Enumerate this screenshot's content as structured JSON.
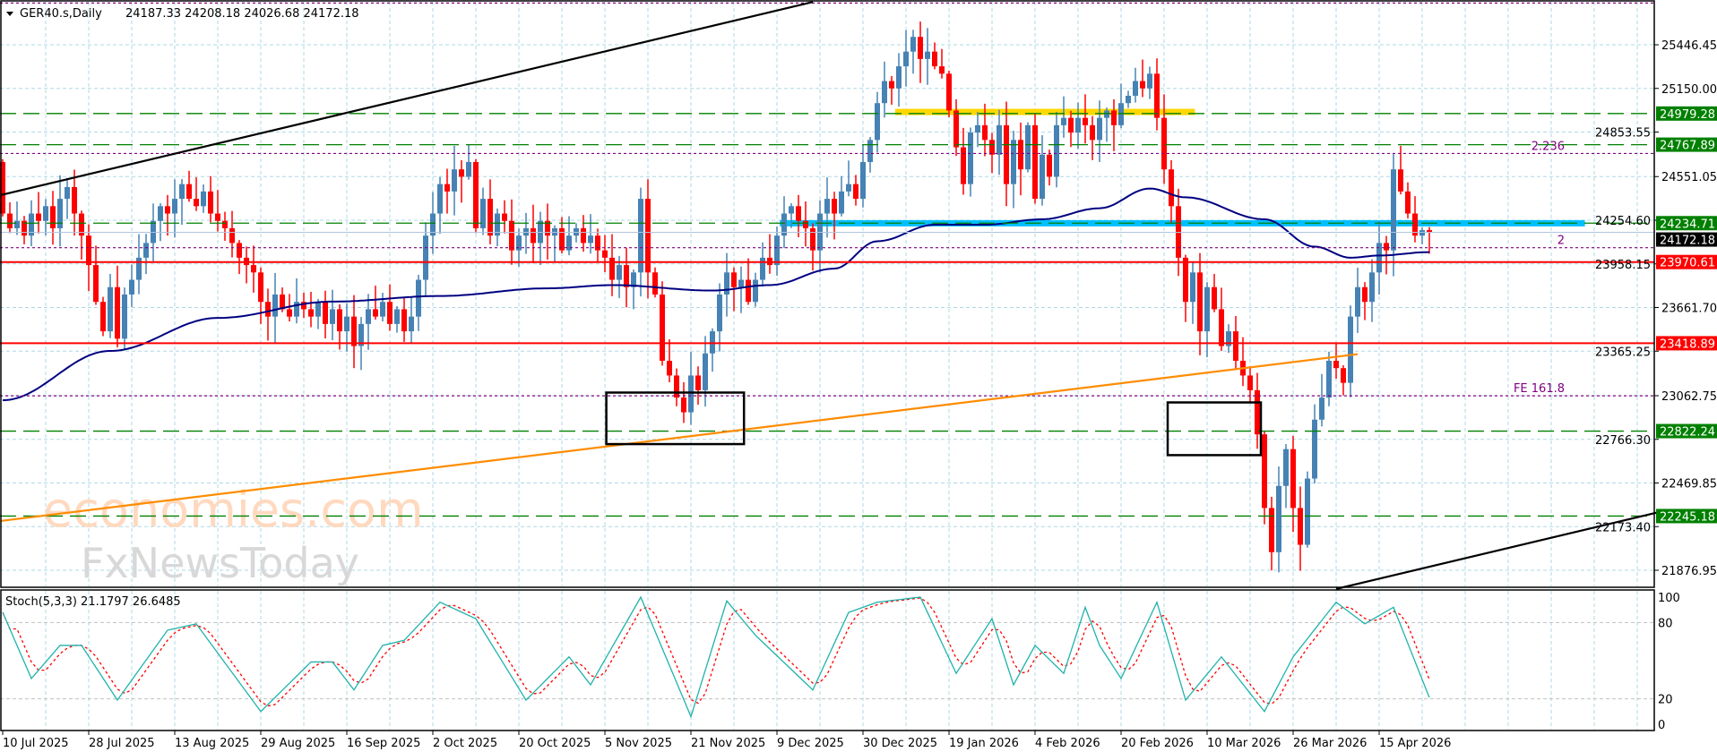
{
  "header": {
    "symbol": "GER40.s,Daily",
    "ohlc": "24187.33 24208.18 24026.68 24172.18",
    "menu_icon": "triangle-down-icon"
  },
  "watermark": {
    "line1": "economies.com",
    "line2": "FxNewsToday"
  },
  "colors": {
    "bull": "#4682b4",
    "bear": "#ff0000",
    "grid": "#add8e6",
    "ma": "#000080",
    "support_resistance_green": "#008000",
    "support_resistance_red": "#ff0000",
    "fib": "#800080",
    "yellow_zone": "#ffd700",
    "cyan_zone": "#00bfff",
    "orange_trend": "#ff8c00",
    "stoch_main": "#20b2aa",
    "stoch_signal": "#ff0000",
    "current_price": "#000000"
  },
  "chart_data": {
    "type": "candlestick",
    "instrument": "GER40.s",
    "timeframe": "Daily",
    "last_bar": {
      "open": 24187.33,
      "high": 24208.18,
      "low": 24026.68,
      "close": 24172.18
    },
    "closes": [
      24300,
      24200,
      24250,
      24150,
      24300,
      24250,
      24350,
      24200,
      24400,
      24480,
      24300,
      24150,
      23950,
      23700,
      23500,
      23800,
      23450,
      23750,
      23850,
      24000,
      24100,
      24250,
      24350,
      24300,
      24400,
      24500,
      24400,
      24350,
      24450,
      24300,
      24250,
      24200,
      24100,
      24000,
      23950,
      23900,
      23700,
      23600,
      23750,
      23650,
      23600,
      23700,
      23650,
      23600,
      23700,
      23550,
      23650,
      23500,
      23600,
      23400,
      23550,
      23650,
      23600,
      23700,
      23550,
      23650,
      23500,
      23600,
      23850,
      24150,
      24300,
      24500,
      24450,
      24600,
      24550,
      24650,
      24200,
      24400,
      24150,
      24300,
      24250,
      24050,
      24150,
      24200,
      24100,
      24250,
      24150,
      24200,
      24050,
      24150,
      24200,
      24100,
      24150,
      24050,
      24000,
      23850,
      23950,
      23800,
      23900,
      24400,
      23900,
      23750,
      23300,
      23200,
      23050,
      22950,
      23200,
      23100,
      23350,
      23500,
      23750,
      23900,
      23800,
      23850,
      23700,
      23850,
      24000,
      23950,
      24150,
      24300,
      24350,
      24250,
      24200,
      24050,
      24300,
      24400,
      24300,
      24450,
      24500,
      24400,
      24650,
      24800,
      25050,
      25200,
      25150,
      25300,
      25400,
      25500,
      25350,
      25400,
      25300,
      25250,
      25000,
      24750,
      24500,
      24850,
      24900,
      24800,
      24700,
      24900,
      24500,
      24800,
      24600,
      24900,
      24400,
      24700,
      24550,
      24900,
      24950,
      24850,
      24950,
      24900,
      24800,
      24950,
      25000,
      24900,
      25050,
      25100,
      25200,
      25150,
      25250,
      24950,
      24600,
      24350,
      24000,
      23700,
      23900,
      23500,
      23800,
      23650,
      23400,
      23500,
      23300,
      23200,
      23100,
      22800,
      22300,
      22000,
      22450,
      22700,
      22300,
      22050,
      22500,
      22900,
      23050,
      23300,
      23250,
      23150,
      23600,
      23800,
      23700,
      23900,
      24100,
      24050,
      24600,
      24450,
      24300,
      24150,
      24187.33,
      24172.18
    ],
    "moving_average_keyframes": [
      [
        0,
        23032
      ],
      [
        15,
        23367
      ],
      [
        30,
        23591
      ],
      [
        46,
        23702
      ],
      [
        61,
        23740
      ],
      [
        76,
        23792
      ],
      [
        85,
        23814
      ],
      [
        99,
        23777
      ],
      [
        107,
        23814
      ],
      [
        116,
        23926
      ],
      [
        122,
        24112
      ],
      [
        130,
        24224
      ],
      [
        137,
        24224
      ],
      [
        145,
        24261
      ],
      [
        153,
        24336
      ],
      [
        160,
        24470
      ],
      [
        165,
        24410
      ],
      [
        176,
        24261
      ],
      [
        183,
        24075
      ],
      [
        188,
        24000
      ],
      [
        192,
        24015
      ],
      [
        199,
        24038
      ]
    ],
    "yaxis": {
      "ylim": [
        21800,
        25760
      ],
      "ticks": [
        "25446.45",
        "25150.00",
        "24853.55",
        "24551.05",
        "24254.60",
        "23958.15",
        "23661.70",
        "23365.25",
        "23062.75",
        "22766.30",
        "22469.85",
        "22173.40",
        "21876.95"
      ]
    },
    "xaxis": {
      "tick_labels": [
        {
          "bar": 0,
          "label": "10 Jul 2025"
        },
        {
          "bar": 12,
          "label": "28 Jul 2025"
        },
        {
          "bar": 24,
          "label": "13 Aug 2025"
        },
        {
          "bar": 36,
          "label": "29 Aug 2025"
        },
        {
          "bar": 48,
          "label": "16 Sep 2025"
        },
        {
          "bar": 60,
          "label": "2 Oct 2025"
        },
        {
          "bar": 72,
          "label": "20 Oct 2025"
        },
        {
          "bar": 84,
          "label": "5 Nov 2025"
        },
        {
          "bar": 96,
          "label": "21 Nov 2025"
        },
        {
          "bar": 108,
          "label": "9 Dec 2025"
        },
        {
          "bar": 120,
          "label": "30 Dec 2025"
        },
        {
          "bar": 132,
          "label": "19 Jan 2026"
        },
        {
          "bar": 144,
          "label": "4 Feb 2026"
        },
        {
          "bar": 156,
          "label": "20 Feb 2026"
        },
        {
          "bar": 168,
          "label": "10 Mar 2026"
        },
        {
          "bar": 180,
          "label": "26 Mar 2026"
        },
        {
          "bar": 192,
          "label": "15 Apr 2026"
        }
      ]
    },
    "levels": [
      {
        "price": 24979.28,
        "label": "24979.28",
        "kind": "green-dashed"
      },
      {
        "price": 24767.89,
        "label": "24767.89",
        "kind": "green-dashed"
      },
      {
        "price": 24234.71,
        "label": "24234.71",
        "kind": "green-dashed"
      },
      {
        "price": 23970.61,
        "label": "23970.61",
        "kind": "red-solid"
      },
      {
        "price": 23418.89,
        "label": "23418.89",
        "kind": "red-solid"
      },
      {
        "price": 22822.24,
        "label": "22822.24",
        "kind": "green-dashed"
      },
      {
        "price": 22245.18,
        "label": "22245.18",
        "kind": "green-dashed"
      }
    ],
    "current_price": {
      "price": 24172.18,
      "label": "24172.18"
    },
    "fib_levels": [
      {
        "price": 25730,
        "label": ""
      },
      {
        "price": 24708,
        "label": "2.236"
      },
      {
        "price": 24068,
        "label": "2"
      },
      {
        "price": 23062,
        "label": "FE 161.8"
      }
    ],
    "zones": [
      {
        "name": "yellow-resistance-zone",
        "price": 24990,
        "from_bar": 124.5,
        "to_bar": 166.3,
        "color": "#ffd700"
      },
      {
        "name": "cyan-pivot-zone",
        "price": 24234,
        "from_bar": 108.4,
        "to_bar": 220.7,
        "color": "#00bfff"
      }
    ],
    "trendlines": [
      {
        "name": "upper-channel-trendline",
        "from": [
          -0.3,
          24425
        ],
        "to": [
          113,
          25737
        ],
        "color": "#000000"
      },
      {
        "name": "lower-channel-trendline",
        "from": [
          186,
          21750
        ],
        "to": [
          231,
          22272
        ],
        "color": "#000000"
      },
      {
        "name": "orange-rising-trendline",
        "from": [
          -0.3,
          22212
        ],
        "to": [
          189,
          23345
        ],
        "color": "#ff8c00"
      }
    ],
    "rectangles": [
      {
        "name": "november-low-box",
        "from_bar": 84.2,
        "to_bar": 103.4,
        "top": 23084,
        "bottom": 22734
      },
      {
        "name": "march-low-box",
        "from_bar": 162.5,
        "to_bar": 175.5,
        "top": 23017,
        "bottom": 22659
      }
    ],
    "stochastic": {
      "label": "Stoch(5,3,3) 21.1797 26.6485",
      "ylim": [
        0,
        100
      ],
      "ticks": [
        "100",
        "80",
        "20",
        "0"
      ],
      "main_keyframes": [
        [
          0,
          88
        ],
        [
          4,
          36
        ],
        [
          8,
          62
        ],
        [
          11,
          62
        ],
        [
          16,
          19
        ],
        [
          23,
          74
        ],
        [
          27,
          79
        ],
        [
          36,
          10
        ],
        [
          43,
          49
        ],
        [
          46,
          49
        ],
        [
          49,
          27
        ],
        [
          53,
          62
        ],
        [
          56,
          66
        ],
        [
          61,
          96
        ],
        [
          66,
          83
        ],
        [
          73,
          19
        ],
        [
          79,
          53
        ],
        [
          82,
          31
        ],
        [
          89,
          100
        ],
        [
          96,
          6
        ],
        [
          101,
          97
        ],
        [
          105,
          70
        ],
        [
          113,
          27
        ],
        [
          118,
          88
        ],
        [
          122,
          96
        ],
        [
          128,
          100
        ],
        [
          133,
          40
        ],
        [
          138,
          83
        ],
        [
          141,
          31
        ],
        [
          144,
          62
        ],
        [
          148,
          40
        ],
        [
          151,
          92
        ],
        [
          153,
          62
        ],
        [
          156,
          36
        ],
        [
          161,
          96
        ],
        [
          165,
          19
        ],
        [
          170,
          53
        ],
        [
          176,
          10
        ],
        [
          180,
          53
        ],
        [
          186,
          96
        ],
        [
          190,
          79
        ],
        [
          194,
          92
        ],
        [
          199,
          21
        ]
      ]
    }
  }
}
